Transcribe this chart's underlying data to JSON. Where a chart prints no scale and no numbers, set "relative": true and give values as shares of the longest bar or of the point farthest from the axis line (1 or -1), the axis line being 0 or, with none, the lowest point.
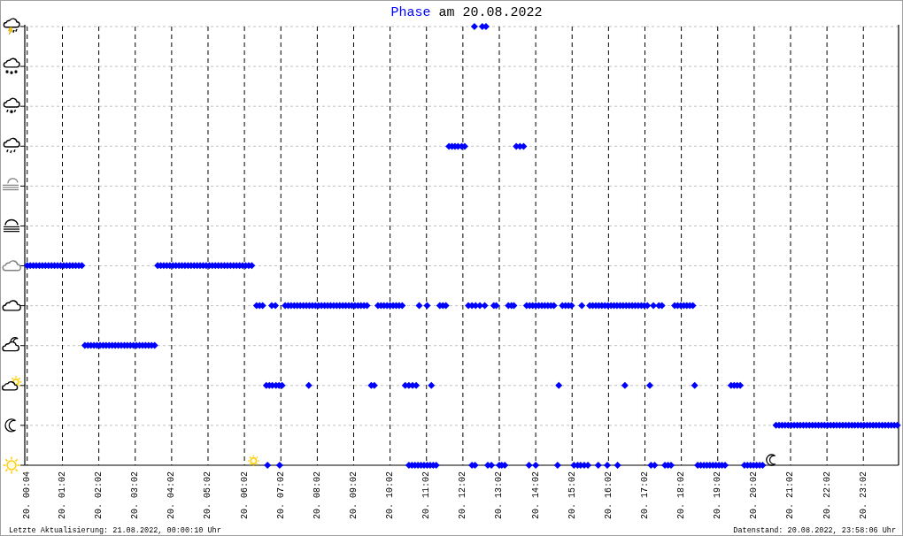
{
  "chart_data": {
    "type": "scatter",
    "title": "am 20.08.2022",
    "annotations": [
      "Letzte Aktualisierung: 21.08.2022, 00:00:10 Uhr",
      "Datenstand: 20.08.2022, 23:58:06 Uhr"
    ],
    "relative": true,
    "marker": "diamond",
    "grid": true,
    "xlim": [
      "2022-08-20T00:00",
      "2022-08-21T00:00"
    ],
    "xticks": [
      {
        "value": "2022-08-20T00:04",
        "label": "20. 00:04"
      },
      {
        "value": "2022-08-20T01:02",
        "label": "20. 01:02"
      },
      {
        "value": "2022-08-20T02:02",
        "label": "20. 02:02"
      },
      {
        "value": "2022-08-20T03:02",
        "label": "20. 03:02"
      },
      {
        "value": "2022-08-20T04:02",
        "label": "20. 04:02"
      },
      {
        "value": "2022-08-20T05:02",
        "label": "20. 05:02"
      },
      {
        "value": "2022-08-20T06:02",
        "label": "20. 06:02"
      },
      {
        "value": "2022-08-20T07:02",
        "label": "20. 07:02"
      },
      {
        "value": "2022-08-20T08:02",
        "label": "20. 08:02"
      },
      {
        "value": "2022-08-20T09:02",
        "label": "20. 09:02"
      },
      {
        "value": "2022-08-20T10:02",
        "label": "20. 10:02"
      },
      {
        "value": "2022-08-20T11:02",
        "label": "20. 11:02"
      },
      {
        "value": "2022-08-20T12:02",
        "label": "20. 12:02"
      },
      {
        "value": "2022-08-20T13:02",
        "label": "20. 13:02"
      },
      {
        "value": "2022-08-20T14:02",
        "label": "20. 14:02"
      },
      {
        "value": "2022-08-20T15:02",
        "label": "20. 15:02"
      },
      {
        "value": "2022-08-20T16:02",
        "label": "20. 16:02"
      },
      {
        "value": "2022-08-20T17:02",
        "label": "20. 17:02"
      },
      {
        "value": "2022-08-20T18:02",
        "label": "20. 18:02"
      },
      {
        "value": "2022-08-20T19:02",
        "label": "20. 19:02"
      },
      {
        "value": "2022-08-20T20:02",
        "label": "20. 20:02"
      },
      {
        "value": "2022-08-20T21:02",
        "label": "20. 21:02"
      },
      {
        "value": "2022-08-20T22:02",
        "label": "20. 22:02"
      },
      {
        "value": "2022-08-20T23:02",
        "label": "20. 23:02"
      }
    ],
    "series": [
      {
        "name": "Phase",
        "color": "#0000ff",
        "x": [
          "2022-08-20T00:04",
          "2022-08-20T00:09",
          "2022-08-20T00:14",
          "2022-08-20T00:19",
          "2022-08-20T00:24",
          "2022-08-20T00:29",
          "2022-08-20T00:34",
          "2022-08-20T00:39",
          "2022-08-20T00:44",
          "2022-08-20T00:49",
          "2022-08-20T00:54",
          "2022-08-20T00:59",
          "2022-08-20T01:04",
          "2022-08-20T01:09",
          "2022-08-20T01:14",
          "2022-08-20T01:19",
          "2022-08-20T01:24",
          "2022-08-20T01:29",
          "2022-08-20T01:34",
          "2022-08-20T01:39",
          "2022-08-20T01:44",
          "2022-08-20T01:49",
          "2022-08-20T01:54",
          "2022-08-20T01:59",
          "2022-08-20T02:04",
          "2022-08-20T02:09",
          "2022-08-20T02:14",
          "2022-08-20T02:19",
          "2022-08-20T02:24",
          "2022-08-20T02:29",
          "2022-08-20T02:34",
          "2022-08-20T02:39",
          "2022-08-20T02:44",
          "2022-08-20T02:49",
          "2022-08-20T02:54",
          "2022-08-20T02:59",
          "2022-08-20T03:04",
          "2022-08-20T03:09",
          "2022-08-20T03:14",
          "2022-08-20T03:19",
          "2022-08-20T03:24",
          "2022-08-20T03:29",
          "2022-08-20T03:34",
          "2022-08-20T03:39",
          "2022-08-20T03:44",
          "2022-08-20T03:49",
          "2022-08-20T03:54",
          "2022-08-20T03:59",
          "2022-08-20T04:04",
          "2022-08-20T04:09",
          "2022-08-20T04:14",
          "2022-08-20T04:19",
          "2022-08-20T04:24",
          "2022-08-20T04:29",
          "2022-08-20T04:34",
          "2022-08-20T04:39",
          "2022-08-20T04:44",
          "2022-08-20T04:49",
          "2022-08-20T04:54",
          "2022-08-20T04:59",
          "2022-08-20T05:04",
          "2022-08-20T05:09",
          "2022-08-20T05:14",
          "2022-08-20T05:19",
          "2022-08-20T05:24",
          "2022-08-20T05:29",
          "2022-08-20T05:34",
          "2022-08-20T05:39",
          "2022-08-20T05:44",
          "2022-08-20T05:49",
          "2022-08-20T05:54",
          "2022-08-20T05:59",
          "2022-08-20T06:04",
          "2022-08-20T06:09",
          "2022-08-20T06:14",
          "2022-08-20T06:22",
          "2022-08-20T06:27",
          "2022-08-20T06:32",
          "2022-08-20T06:47",
          "2022-08-20T06:53",
          "2022-08-20T07:09",
          "2022-08-20T07:14",
          "2022-08-20T07:19",
          "2022-08-20T07:24",
          "2022-08-20T07:29",
          "2022-08-20T07:34",
          "2022-08-20T07:39",
          "2022-08-20T07:44",
          "2022-08-20T07:49",
          "2022-08-20T07:54",
          "2022-08-20T07:59",
          "2022-08-20T08:04",
          "2022-08-20T08:09",
          "2022-08-20T08:14",
          "2022-08-20T08:19",
          "2022-08-20T08:24",
          "2022-08-20T08:29",
          "2022-08-20T08:34",
          "2022-08-20T08:39",
          "2022-08-20T08:44",
          "2022-08-20T08:49",
          "2022-08-20T08:54",
          "2022-08-20T08:59",
          "2022-08-20T09:04",
          "2022-08-20T09:09",
          "2022-08-20T09:14",
          "2022-08-20T09:19",
          "2022-08-20T09:24",
          "2022-08-20T09:42",
          "2022-08-20T09:47",
          "2022-08-20T09:52",
          "2022-08-20T09:57",
          "2022-08-20T10:02",
          "2022-08-20T10:07",
          "2022-08-20T10:12",
          "2022-08-20T10:17",
          "2022-08-20T10:22",
          "2022-08-20T10:50",
          "2022-08-20T11:03",
          "2022-08-20T11:24",
          "2022-08-20T11:29",
          "2022-08-20T11:34",
          "2022-08-20T12:11",
          "2022-08-20T12:17",
          "2022-08-20T12:23",
          "2022-08-20T12:30",
          "2022-08-20T12:38",
          "2022-08-20T12:53",
          "2022-08-20T12:57",
          "2022-08-20T13:17",
          "2022-08-20T13:22",
          "2022-08-20T13:26",
          "2022-08-20T13:47",
          "2022-08-20T13:52",
          "2022-08-20T13:57",
          "2022-08-20T14:02",
          "2022-08-20T14:07",
          "2022-08-20T14:12",
          "2022-08-20T14:17",
          "2022-08-20T14:22",
          "2022-08-20T14:27",
          "2022-08-20T14:32",
          "2022-08-20T14:46",
          "2022-08-20T14:51",
          "2022-08-20T14:56",
          "2022-08-20T15:01",
          "2022-08-20T15:18",
          "2022-08-20T15:31",
          "2022-08-20T15:36",
          "2022-08-20T15:41",
          "2022-08-20T15:46",
          "2022-08-20T15:51",
          "2022-08-20T15:56",
          "2022-08-20T16:01",
          "2022-08-20T16:06",
          "2022-08-20T16:11",
          "2022-08-20T16:16",
          "2022-08-20T16:21",
          "2022-08-20T16:26",
          "2022-08-20T16:31",
          "2022-08-20T16:36",
          "2022-08-20T16:41",
          "2022-08-20T16:46",
          "2022-08-20T16:51",
          "2022-08-20T16:56",
          "2022-08-20T17:01",
          "2022-08-20T17:06",
          "2022-08-20T17:16",
          "2022-08-20T17:25",
          "2022-08-20T17:30",
          "2022-08-20T17:51",
          "2022-08-20T17:56",
          "2022-08-20T18:01",
          "2022-08-20T18:06",
          "2022-08-20T18:11",
          "2022-08-20T18:16",
          "2022-08-20T18:21",
          "2022-08-20T06:38",
          "2022-08-20T06:43",
          "2022-08-20T06:48",
          "2022-08-20T06:54",
          "2022-08-20T06:59",
          "2022-08-20T07:04",
          "2022-08-20T07:48",
          "2022-08-20T09:31",
          "2022-08-20T09:36",
          "2022-08-20T10:27",
          "2022-08-20T10:33",
          "2022-08-20T10:39",
          "2022-08-20T10:45",
          "2022-08-20T11:10",
          "2022-08-20T14:40",
          "2022-08-20T16:29",
          "2022-08-20T17:10",
          "2022-08-20T18:24",
          "2022-08-20T19:24",
          "2022-08-20T19:29",
          "2022-08-20T19:34",
          "2022-08-20T19:39",
          "2022-08-20T06:40",
          "2022-08-20T07:00",
          "2022-08-20T10:33",
          "2022-08-20T10:38",
          "2022-08-20T10:43",
          "2022-08-20T10:48",
          "2022-08-20T10:53",
          "2022-08-20T10:58",
          "2022-08-20T11:03",
          "2022-08-20T11:08",
          "2022-08-20T11:13",
          "2022-08-20T11:18",
          "2022-08-20T12:17",
          "2022-08-20T12:22",
          "2022-08-20T12:43",
          "2022-08-20T12:49",
          "2022-08-20T13:02",
          "2022-08-20T13:06",
          "2022-08-20T13:11",
          "2022-08-20T13:51",
          "2022-08-20T14:02",
          "2022-08-20T14:38",
          "2022-08-20T15:05",
          "2022-08-20T15:11",
          "2022-08-20T15:16",
          "2022-08-20T15:22",
          "2022-08-20T15:28",
          "2022-08-20T15:45",
          "2022-08-20T16:00",
          "2022-08-20T16:17",
          "2022-08-20T17:12",
          "2022-08-20T17:18",
          "2022-08-20T17:35",
          "2022-08-20T17:40",
          "2022-08-20T17:45",
          "2022-08-20T18:29",
          "2022-08-20T18:34",
          "2022-08-20T18:39",
          "2022-08-20T18:44",
          "2022-08-20T18:49",
          "2022-08-20T18:54",
          "2022-08-20T18:59",
          "2022-08-20T19:04",
          "2022-08-20T19:09",
          "2022-08-20T19:14",
          "2022-08-20T19:46",
          "2022-08-20T19:51",
          "2022-08-20T19:56",
          "2022-08-20T20:01",
          "2022-08-20T20:06",
          "2022-08-20T20:11",
          "2022-08-20T20:16",
          "2022-08-20T20:38",
          "2022-08-20T20:43",
          "2022-08-20T20:48",
          "2022-08-20T20:53",
          "2022-08-20T20:58",
          "2022-08-20T21:03",
          "2022-08-20T21:08",
          "2022-08-20T21:13",
          "2022-08-20T21:18",
          "2022-08-20T21:23",
          "2022-08-20T21:28",
          "2022-08-20T21:33",
          "2022-08-20T21:38",
          "2022-08-20T21:43",
          "2022-08-20T21:48",
          "2022-08-20T21:53",
          "2022-08-20T21:58",
          "2022-08-20T22:03",
          "2022-08-20T22:08",
          "2022-08-20T22:13",
          "2022-08-20T22:18",
          "2022-08-20T22:23",
          "2022-08-20T22:28",
          "2022-08-20T22:33",
          "2022-08-20T22:38",
          "2022-08-20T22:43",
          "2022-08-20T22:48",
          "2022-08-20T22:53",
          "2022-08-20T22:58",
          "2022-08-20T23:03",
          "2022-08-20T23:08",
          "2022-08-20T23:13",
          "2022-08-20T23:18",
          "2022-08-20T23:23",
          "2022-08-20T23:28",
          "2022-08-20T23:33",
          "2022-08-20T23:38",
          "2022-08-20T23:43",
          "2022-08-20T23:48",
          "2022-08-20T23:53",
          "2022-08-20T23:58",
          "2022-08-20T11:39",
          "2022-08-20T11:44",
          "2022-08-20T11:49",
          "2022-08-20T11:54",
          "2022-08-20T12:00",
          "2022-08-20T12:05",
          "2022-08-20T13:30",
          "2022-08-20T13:36",
          "2022-08-20T13:42",
          "2022-08-20T12:21",
          "2022-08-20T12:34",
          "2022-08-20T12:40"
        ],
        "values": [
          0.455,
          0.455,
          0.455,
          0.455,
          0.455,
          0.455,
          0.455,
          0.455,
          0.455,
          0.455,
          0.455,
          0.455,
          0.455,
          0.455,
          0.455,
          0.455,
          0.455,
          0.455,
          0.455,
          0.273,
          0.273,
          0.273,
          0.273,
          0.273,
          0.273,
          0.273,
          0.273,
          0.273,
          0.273,
          0.273,
          0.273,
          0.273,
          0.273,
          0.273,
          0.273,
          0.273,
          0.273,
          0.273,
          0.273,
          0.273,
          0.273,
          0.273,
          0.273,
          0.455,
          0.455,
          0.455,
          0.455,
          0.455,
          0.455,
          0.455,
          0.455,
          0.455,
          0.455,
          0.455,
          0.455,
          0.455,
          0.455,
          0.455,
          0.455,
          0.455,
          0.455,
          0.455,
          0.455,
          0.455,
          0.455,
          0.455,
          0.455,
          0.455,
          0.455,
          0.455,
          0.455,
          0.455,
          0.455,
          0.455,
          0.455,
          0.364,
          0.364,
          0.364,
          0.364,
          0.364,
          0.364,
          0.364,
          0.364,
          0.364,
          0.364,
          0.364,
          0.364,
          0.364,
          0.364,
          0.364,
          0.364,
          0.364,
          0.364,
          0.364,
          0.364,
          0.364,
          0.364,
          0.364,
          0.364,
          0.364,
          0.364,
          0.364,
          0.364,
          0.364,
          0.364,
          0.364,
          0.364,
          0.364,
          0.364,
          0.364,
          0.364,
          0.364,
          0.364,
          0.364,
          0.364,
          0.364,
          0.364,
          0.364,
          0.364,
          0.364,
          0.364,
          0.364,
          0.364,
          0.364,
          0.364,
          0.364,
          0.364,
          0.364,
          0.364,
          0.364,
          0.364,
          0.364,
          0.364,
          0.364,
          0.364,
          0.364,
          0.364,
          0.364,
          0.364,
          0.364,
          0.364,
          0.364,
          0.364,
          0.364,
          0.364,
          0.364,
          0.364,
          0.364,
          0.364,
          0.364,
          0.364,
          0.364,
          0.364,
          0.364,
          0.364,
          0.364,
          0.364,
          0.364,
          0.364,
          0.364,
          0.364,
          0.364,
          0.364,
          0.364,
          0.364,
          0.364,
          0.364,
          0.364,
          0.364,
          0.364,
          0.364,
          0.364,
          0.364,
          0.364,
          0.364,
          0.364,
          0.364,
          0.182,
          0.182,
          0.182,
          0.182,
          0.182,
          0.182,
          0.182,
          0.182,
          0.182,
          0.182,
          0.182,
          0.182,
          0.182,
          0.182,
          0.182,
          0.182,
          0.182,
          0.182,
          0.182,
          0.182,
          0.182,
          0.182,
          0,
          0,
          0,
          0,
          0,
          0,
          0,
          0,
          0,
          0,
          0,
          0,
          0,
          0,
          0,
          0,
          0,
          0,
          0,
          0,
          0,
          0,
          0,
          0,
          0,
          0,
          0,
          0,
          0,
          0,
          0,
          0,
          0,
          0,
          0,
          0,
          0,
          0,
          0,
          0,
          0,
          0,
          0,
          0,
          0,
          0,
          0,
          0,
          0,
          0,
          0,
          0,
          0.091,
          0.091,
          0.091,
          0.091,
          0.091,
          0.091,
          0.091,
          0.091,
          0.091,
          0.091,
          0.091,
          0.091,
          0.091,
          0.091,
          0.091,
          0.091,
          0.091,
          0.091,
          0.091,
          0.091,
          0.091,
          0.091,
          0.091,
          0.091,
          0.091,
          0.091,
          0.091,
          0.091,
          0.091,
          0.091,
          0.091,
          0.091,
          0.091,
          0.091,
          0.091,
          0.091,
          0.091,
          0.091,
          0.091,
          0.091,
          0.091,
          0.727,
          0.727,
          0.727,
          0.727,
          0.727,
          0.727,
          0.727,
          0.727,
          0.727,
          1,
          1,
          1
        ]
      }
    ]
  }
}
